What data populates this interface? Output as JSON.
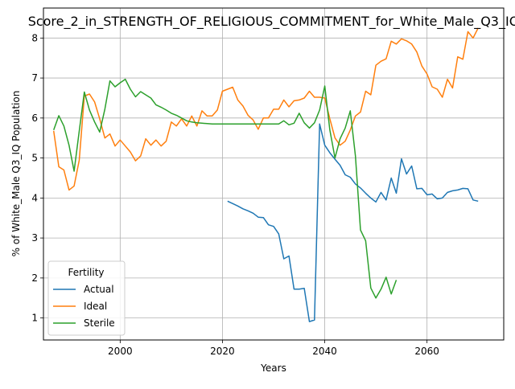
{
  "chart_data": {
    "type": "line",
    "title": "Score_2_in_STRENGTH_OF_RELIGIOUS_COMMITMENT_for_White_Male_Q3_IQ",
    "xlabel": "Years",
    "ylabel": "% of White_Male Q3_IQ Population",
    "xlim": [
      1985,
      2075
    ],
    "ylim": [
      0.45,
      8.75
    ],
    "xticks": [
      2000,
      2020,
      2040,
      2060
    ],
    "yticks": [
      1,
      2,
      3,
      4,
      5,
      6,
      7,
      8
    ],
    "grid": true,
    "legend": {
      "title": "Fertility",
      "placement": "lower-left"
    },
    "series": [
      {
        "name": "Actual",
        "color": "#1f77b4",
        "points": [
          [
            2021,
            3.92
          ],
          [
            2022,
            3.86
          ],
          [
            2023,
            3.8
          ],
          [
            2024,
            3.73
          ],
          [
            2025,
            3.68
          ],
          [
            2026,
            3.62
          ],
          [
            2027,
            3.52
          ],
          [
            2028,
            3.51
          ],
          [
            2029,
            3.33
          ],
          [
            2030,
            3.29
          ],
          [
            2031,
            3.1
          ],
          [
            2032,
            2.48
          ],
          [
            2033,
            2.55
          ],
          [
            2034,
            1.72
          ],
          [
            2035,
            1.72
          ],
          [
            2036,
            1.74
          ],
          [
            2037,
            0.91
          ],
          [
            2038,
            0.95
          ],
          [
            2039,
            5.85
          ],
          [
            2040,
            5.32
          ],
          [
            2041,
            5.13
          ],
          [
            2042,
            4.97
          ],
          [
            2043,
            4.82
          ],
          [
            2044,
            4.58
          ],
          [
            2045,
            4.52
          ],
          [
            2046,
            4.35
          ],
          [
            2047,
            4.25
          ],
          [
            2048,
            4.12
          ],
          [
            2049,
            4.0
          ],
          [
            2050,
            3.9
          ],
          [
            2051,
            4.14
          ],
          [
            2052,
            3.95
          ],
          [
            2053,
            4.5
          ],
          [
            2054,
            4.12
          ],
          [
            2055,
            4.98
          ],
          [
            2056,
            4.6
          ],
          [
            2057,
            4.8
          ],
          [
            2058,
            4.23
          ],
          [
            2059,
            4.24
          ],
          [
            2060,
            4.08
          ],
          [
            2061,
            4.1
          ],
          [
            2062,
            3.98
          ],
          [
            2063,
            4.0
          ],
          [
            2064,
            4.14
          ],
          [
            2065,
            4.18
          ],
          [
            2066,
            4.2
          ],
          [
            2067,
            4.24
          ],
          [
            2068,
            4.23
          ],
          [
            2069,
            3.95
          ],
          [
            2070,
            3.92
          ]
        ]
      },
      {
        "name": "Ideal",
        "color": "#ff7f0e",
        "points": [
          [
            1987,
            5.68
          ],
          [
            1988,
            4.78
          ],
          [
            1989,
            4.7
          ],
          [
            1990,
            4.2
          ],
          [
            1991,
            4.3
          ],
          [
            1992,
            4.95
          ],
          [
            1993,
            6.55
          ],
          [
            1994,
            6.6
          ],
          [
            1995,
            6.4
          ],
          [
            1996,
            5.98
          ],
          [
            1997,
            5.5
          ],
          [
            1998,
            5.6
          ],
          [
            1999,
            5.3
          ],
          [
            2000,
            5.45
          ],
          [
            2001,
            5.3
          ],
          [
            2002,
            5.15
          ],
          [
            2003,
            4.93
          ],
          [
            2004,
            5.05
          ],
          [
            2005,
            5.48
          ],
          [
            2006,
            5.32
          ],
          [
            2007,
            5.45
          ],
          [
            2008,
            5.3
          ],
          [
            2009,
            5.42
          ],
          [
            2010,
            5.9
          ],
          [
            2011,
            5.8
          ],
          [
            2012,
            5.98
          ],
          [
            2013,
            5.8
          ],
          [
            2014,
            6.05
          ],
          [
            2015,
            5.8
          ],
          [
            2016,
            6.18
          ],
          [
            2017,
            6.05
          ],
          [
            2018,
            6.05
          ],
          [
            2019,
            6.2
          ],
          [
            2020,
            6.67
          ],
          [
            2021,
            6.72
          ],
          [
            2022,
            6.77
          ],
          [
            2023,
            6.45
          ],
          [
            2024,
            6.3
          ],
          [
            2025,
            6.07
          ],
          [
            2026,
            5.95
          ],
          [
            2027,
            5.72
          ],
          [
            2028,
            6.0
          ],
          [
            2029,
            6.0
          ],
          [
            2030,
            6.22
          ],
          [
            2031,
            6.22
          ],
          [
            2032,
            6.45
          ],
          [
            2033,
            6.28
          ],
          [
            2034,
            6.43
          ],
          [
            2035,
            6.45
          ],
          [
            2036,
            6.5
          ],
          [
            2037,
            6.67
          ],
          [
            2038,
            6.52
          ],
          [
            2039,
            6.52
          ],
          [
            2040,
            6.5
          ],
          [
            2041,
            5.98
          ],
          [
            2042,
            5.5
          ],
          [
            2043,
            5.32
          ],
          [
            2044,
            5.42
          ],
          [
            2045,
            5.7
          ],
          [
            2046,
            6.05
          ],
          [
            2047,
            6.15
          ],
          [
            2048,
            6.67
          ],
          [
            2049,
            6.58
          ],
          [
            2050,
            7.32
          ],
          [
            2051,
            7.42
          ],
          [
            2052,
            7.48
          ],
          [
            2053,
            7.92
          ],
          [
            2054,
            7.85
          ],
          [
            2055,
            7.98
          ],
          [
            2056,
            7.93
          ],
          [
            2057,
            7.85
          ],
          [
            2058,
            7.65
          ],
          [
            2059,
            7.3
          ],
          [
            2060,
            7.1
          ],
          [
            2061,
            6.78
          ],
          [
            2062,
            6.72
          ],
          [
            2063,
            6.52
          ],
          [
            2064,
            6.97
          ],
          [
            2065,
            6.75
          ],
          [
            2066,
            7.53
          ],
          [
            2067,
            7.47
          ],
          [
            2068,
            8.16
          ],
          [
            2069,
            8.0
          ],
          [
            2070,
            8.25
          ]
        ]
      },
      {
        "name": "Sterile",
        "color": "#2ca02c",
        "points": [
          [
            1987,
            5.7
          ],
          [
            1988,
            6.06
          ],
          [
            1989,
            5.8
          ],
          [
            1990,
            5.32
          ],
          [
            1991,
            4.67
          ],
          [
            1992,
            5.68
          ],
          [
            1993,
            6.65
          ],
          [
            1994,
            6.2
          ],
          [
            1995,
            5.9
          ],
          [
            1996,
            5.65
          ],
          [
            1997,
            6.22
          ],
          [
            1998,
            6.93
          ],
          [
            1999,
            6.78
          ],
          [
            2000,
            6.88
          ],
          [
            2001,
            6.97
          ],
          [
            2002,
            6.72
          ],
          [
            2003,
            6.53
          ],
          [
            2004,
            6.66
          ],
          [
            2005,
            6.58
          ],
          [
            2006,
            6.5
          ],
          [
            2007,
            6.33
          ],
          [
            2008,
            6.27
          ],
          [
            2009,
            6.2
          ],
          [
            2010,
            6.12
          ],
          [
            2011,
            6.07
          ],
          [
            2012,
            6.0
          ],
          [
            2013,
            5.93
          ],
          [
            2014,
            5.9
          ],
          [
            2015,
            5.88
          ],
          [
            2016,
            5.87
          ],
          [
            2017,
            5.86
          ],
          [
            2018,
            5.85
          ],
          [
            2019,
            5.85
          ],
          [
            2020,
            5.85
          ],
          [
            2021,
            5.85
          ],
          [
            2022,
            5.85
          ],
          [
            2023,
            5.85
          ],
          [
            2024,
            5.85
          ],
          [
            2025,
            5.85
          ],
          [
            2026,
            5.85
          ],
          [
            2027,
            5.85
          ],
          [
            2028,
            5.85
          ],
          [
            2029,
            5.85
          ],
          [
            2030,
            5.85
          ],
          [
            2031,
            5.85
          ],
          [
            2032,
            5.93
          ],
          [
            2033,
            5.83
          ],
          [
            2034,
            5.87
          ],
          [
            2035,
            6.12
          ],
          [
            2036,
            5.88
          ],
          [
            2037,
            5.75
          ],
          [
            2038,
            5.88
          ],
          [
            2039,
            6.2
          ],
          [
            2040,
            6.8
          ],
          [
            2041,
            5.7
          ],
          [
            2042,
            5.0
          ],
          [
            2043,
            5.48
          ],
          [
            2044,
            5.75
          ],
          [
            2045,
            6.18
          ],
          [
            2046,
            5.05
          ],
          [
            2047,
            3.2
          ],
          [
            2048,
            2.93
          ],
          [
            2049,
            1.75
          ],
          [
            2050,
            1.5
          ],
          [
            2051,
            1.72
          ],
          [
            2052,
            2.02
          ],
          [
            2053,
            1.6
          ],
          [
            2054,
            1.95
          ]
        ]
      }
    ]
  }
}
